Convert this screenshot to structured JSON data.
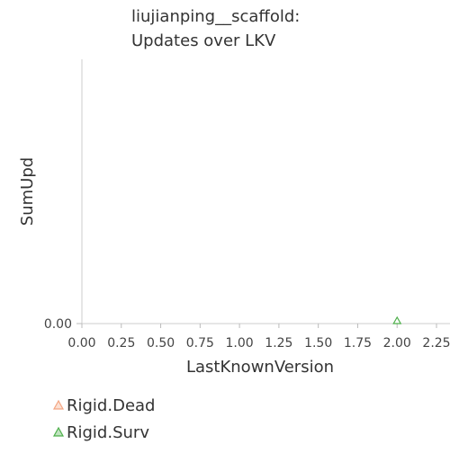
{
  "chart_data": {
    "type": "scatter",
    "title": [
      "liujianping__scaffold:",
      "Updates over LKV"
    ],
    "xlabel": "LastKnownVersion",
    "ylabel": "SumUpd",
    "xlim": [
      0,
      2.25
    ],
    "x_ticks": [
      "0.00",
      "0.25",
      "0.50",
      "0.75",
      "1.00",
      "1.25",
      "1.50",
      "1.75",
      "2.00",
      "2.25"
    ],
    "y_ticks": [
      "0.00"
    ],
    "grid": false,
    "legend_position": "bottom-left",
    "series": [
      {
        "name": "Rigid.Dead",
        "marker": "triangle-open",
        "color": "#f4a582",
        "points": []
      },
      {
        "name": "Rigid.Surv",
        "marker": "triangle-open",
        "color": "#4daf4a",
        "points": [
          {
            "x": 2.0,
            "y": 0.0
          }
        ]
      }
    ]
  }
}
